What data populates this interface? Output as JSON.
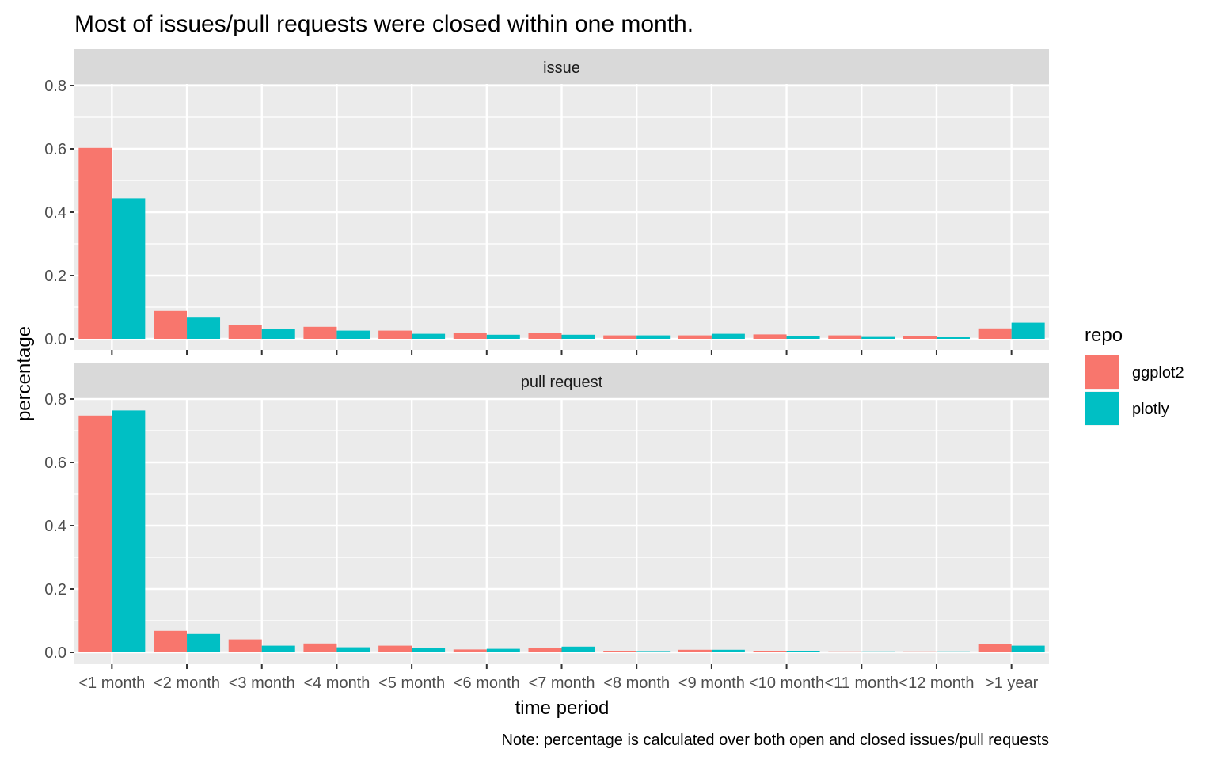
{
  "chart_data": {
    "type": "bar",
    "title": "Most of issues/pull requests were closed within one month.",
    "xlabel": "time period",
    "ylabel": "percentage",
    "caption": "Note: percentage is calculated over both open and closed issues/pull requests",
    "categories": [
      "<1 month",
      "<2 month",
      "<3 month",
      "<4 month",
      "<5 month",
      "<6 month",
      "<7 month",
      "<8 month",
      "<9 month",
      "<10 month",
      "<11 month",
      "<12 month",
      ">1 year"
    ],
    "yticks": [
      "0.0",
      "0.2",
      "0.4",
      "0.6",
      "0.8"
    ],
    "ylim": [
      0,
      0.8
    ],
    "grid": true,
    "legend": {
      "title": "repo",
      "position": "right",
      "items": [
        {
          "label": "ggplot2",
          "color": "#F8766D"
        },
        {
          "label": "plotly",
          "color": "#00BFC4"
        }
      ]
    },
    "panels": [
      {
        "label": "issue",
        "series": [
          {
            "name": "ggplot2",
            "color": "#F8766D",
            "values": [
              0.603,
              0.088,
              0.045,
              0.038,
              0.026,
              0.019,
              0.018,
              0.011,
              0.011,
              0.014,
              0.011,
              0.008,
              0.033
            ]
          },
          {
            "name": "plotly",
            "color": "#00BFC4",
            "values": [
              0.444,
              0.067,
              0.031,
              0.026,
              0.016,
              0.013,
              0.013,
              0.011,
              0.016,
              0.008,
              0.006,
              0.005,
              0.051
            ]
          }
        ]
      },
      {
        "label": "pull request",
        "series": [
          {
            "name": "ggplot2",
            "color": "#F8766D",
            "values": [
              0.748,
              0.068,
              0.041,
              0.028,
              0.021,
              0.009,
              0.013,
              0.005,
              0.008,
              0.005,
              0.003,
              0.003,
              0.026
            ]
          },
          {
            "name": "plotly",
            "color": "#00BFC4",
            "values": [
              0.764,
              0.058,
              0.021,
              0.016,
              0.013,
              0.011,
              0.018,
              0.004,
              0.008,
              0.005,
              0.003,
              0.003,
              0.021
            ]
          }
        ]
      }
    ]
  }
}
